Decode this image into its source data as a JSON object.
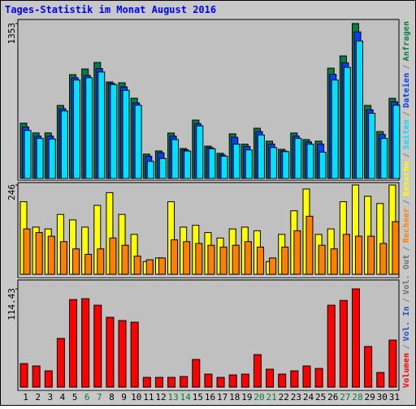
{
  "title": "Tages-Statistik im Monat August 2016",
  "legend_separator": "/",
  "legend_extra": [
    {
      "name": "Vol. In",
      "color": "#2050c0"
    },
    {
      "name": "Vol. Out",
      "color": "#707070"
    }
  ],
  "chart_data": [
    {
      "type": "bar",
      "ylim": [
        0,
        1353
      ],
      "yticks": [
        1353
      ],
      "series": [
        {
          "name": "Anfragen",
          "color": "#008040",
          "values": [
            483,
            398,
            398,
            638,
            907,
            956,
            1013,
            843,
            836,
            701,
            213,
            241,
            397,
            262,
            510,
            283,
            220,
            390,
            300,
            439,
            326,
            255,
            397,
            340,
            326,
            963,
            1070,
            1353,
            638,
            410,
            700
          ]
        },
        {
          "name": "Dateien",
          "color": "#0040ff",
          "values": [
            450,
            370,
            370,
            610,
            880,
            900,
            960,
            830,
            800,
            660,
            195,
            225,
            370,
            250,
            480,
            270,
            205,
            360,
            280,
            410,
            300,
            240,
            370,
            320,
            300,
            910,
            1010,
            1280,
            600,
            385,
            670
          ]
        },
        {
          "name": "Seiten",
          "color": "#00e0ff",
          "values": [
            420,
            350,
            345,
            590,
            860,
            880,
            930,
            820,
            770,
            640,
            150,
            175,
            340,
            240,
            460,
            260,
            195,
            300,
            250,
            380,
            270,
            235,
            350,
            300,
            230,
            860,
            970,
            1200,
            570,
            350,
            640
          ]
        }
      ]
    },
    {
      "type": "bar",
      "ylim": [
        0,
        246
      ],
      "yticks": [
        246
      ],
      "series": [
        {
          "name": "Besuche",
          "color": "#ffff00",
          "values": [
            200,
            130,
            125,
            165,
            150,
            130,
            190,
            225,
            165,
            110,
            35,
            45,
            200,
            130,
            135,
            115,
            100,
            125,
            130,
            120,
            35,
            110,
            175,
            235,
            110,
            125,
            200,
            246,
            215,
            195,
            246
          ]
        },
        {
          "name": "Rechner",
          "color": "#ff8000",
          "values": [
            125,
            115,
            105,
            90,
            70,
            55,
            70,
            100,
            80,
            50,
            40,
            45,
            95,
            90,
            85,
            80,
            75,
            80,
            90,
            75,
            45,
            75,
            120,
            160,
            80,
            70,
            110,
            105,
            105,
            85,
            145
          ]
        }
      ]
    },
    {
      "type": "bar",
      "ylim": [
        0,
        114.43
      ],
      "yticks": [
        114.43
      ],
      "categories": [
        "1",
        "2",
        "3",
        "4",
        "5",
        "6",
        "7",
        "8",
        "9",
        "10",
        "11",
        "12",
        "13",
        "14",
        "15",
        "16",
        "17",
        "18",
        "19",
        "20",
        "21",
        "22",
        "23",
        "24",
        "25",
        "26",
        "27",
        "28",
        "29",
        "30",
        "31"
      ],
      "category_colors": [
        "#000000",
        "#000000",
        "#000000",
        "#000000",
        "#000000",
        "#008040",
        "#008040",
        "#000000",
        "#000000",
        "#000000",
        "#000000",
        "#000000",
        "#008040",
        "#008040",
        "#000000",
        "#000000",
        "#000000",
        "#000000",
        "#000000",
        "#008040",
        "#008040",
        "#000000",
        "#000000",
        "#000000",
        "#000000",
        "#000000",
        "#008040",
        "#008040",
        "#000000",
        "#000000",
        "#000000"
      ],
      "series": [
        {
          "name": "Volumen",
          "color": "#ff0000",
          "values": [
            27.4,
            24.6,
            18.9,
            56.7,
            102,
            103,
            95.4,
            81.3,
            77.5,
            75.6,
            11.3,
            11.3,
            11.3,
            12.3,
            32.2,
            15.1,
            11.3,
            14.2,
            15.1,
            37.8,
            20.8,
            15.1,
            18.9,
            24.6,
            21.7,
            95.4,
            101,
            114.43,
            47.3,
            17,
            54.8
          ]
        }
      ]
    }
  ]
}
